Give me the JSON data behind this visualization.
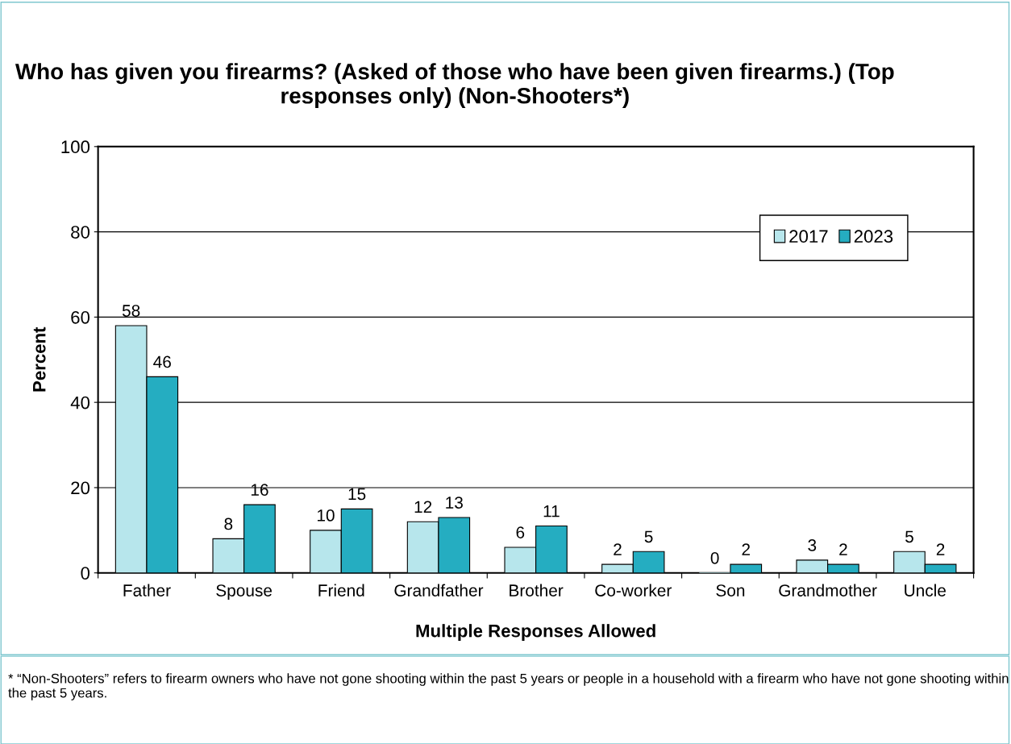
{
  "chart_data": {
    "type": "bar",
    "title": "Who has given you firearms? (Asked of those who have been given firearms.) (Top responses only) (Non-Shooters*)",
    "xlabel": "Multiple Responses Allowed",
    "ylabel": "Percent",
    "categories": [
      "Father",
      "Spouse",
      "Friend",
      "Grandfather",
      "Brother",
      "Co-worker",
      "Son",
      "Grandmother",
      "Uncle"
    ],
    "series": [
      {
        "name": "2017",
        "color": "#b7e6ec",
        "values": [
          58,
          8,
          10,
          12,
          6,
          2,
          0,
          3,
          5
        ]
      },
      {
        "name": "2023",
        "color": "#25adc1",
        "values": [
          46,
          16,
          15,
          13,
          11,
          5,
          2,
          2,
          2
        ]
      }
    ],
    "ylim": [
      0,
      100
    ],
    "yticks": [
      0,
      20,
      40,
      60,
      80,
      100
    ],
    "grid": "y",
    "legend": "top right",
    "data_labels": true,
    "annotations": [
      "* “Non-Shooters” refers to firearm owners who have not gone shooting within the past 5 years or people in a household with a firearm who have not gone shooting within the past 5 years."
    ]
  }
}
